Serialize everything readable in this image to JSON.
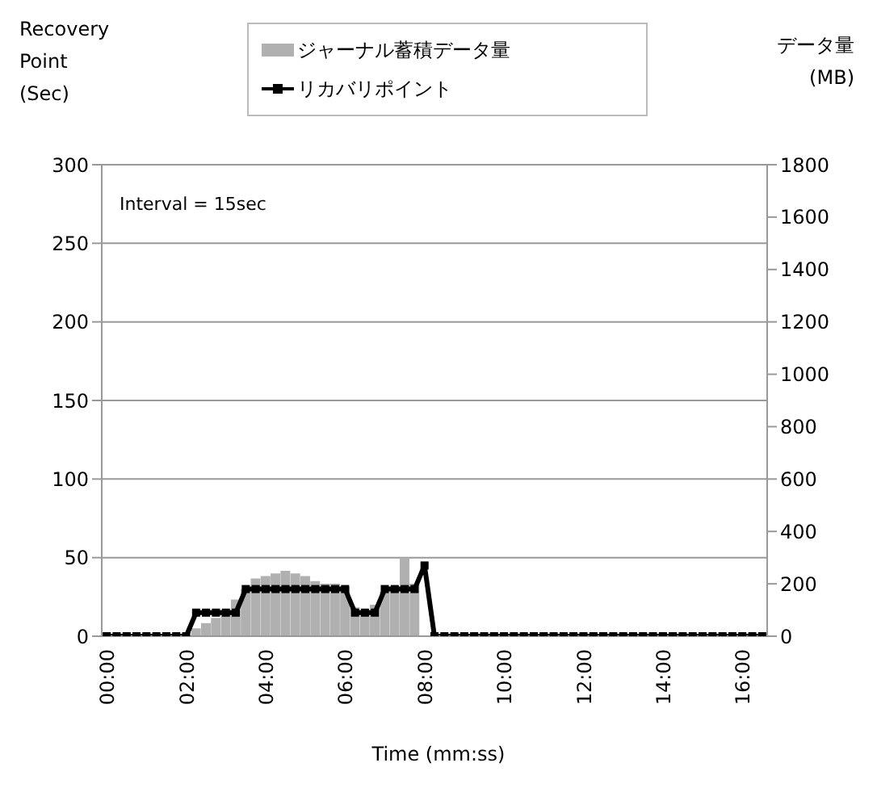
{
  "chart_data": {
    "type": "line",
    "ylabel": "Recovery Point (Sec)",
    "y2label": "データ量 (MB)",
    "xlabel": "Time (mm:ss)",
    "annotations": [
      "Interval = 15sec"
    ],
    "categories": [
      "00:00",
      null,
      null,
      null,
      null,
      null,
      null,
      null,
      "02:00",
      null,
      null,
      null,
      null,
      null,
      null,
      null,
      "04:00",
      null,
      null,
      null,
      null,
      null,
      null,
      null,
      "06:00",
      null,
      null,
      null,
      null,
      null,
      null,
      null,
      "08:00",
      null,
      null,
      null,
      null,
      null,
      null,
      null,
      "10:00",
      null,
      null,
      null,
      null,
      null,
      null,
      null,
      "12:00",
      null,
      null,
      null,
      null,
      null,
      null,
      null,
      "14:00",
      null,
      null,
      null,
      null,
      null,
      null,
      null,
      "16:00",
      null,
      null
    ],
    "series": [
      {
        "name": "ジャーナル蓄積データ量",
        "type": "bar",
        "axis": "y2",
        "color": "#b0b0b0",
        "values": [
          null,
          null,
          null,
          null,
          null,
          null,
          null,
          null,
          null,
          30,
          50,
          70,
          100,
          140,
          180,
          220,
          230,
          240,
          250,
          240,
          230,
          210,
          200,
          200,
          190,
          110,
          100,
          120,
          170,
          190,
          300,
          200,
          null,
          null,
          null,
          null,
          null,
          null,
          null,
          null,
          null,
          null,
          null,
          null,
          null,
          null,
          null,
          null,
          null,
          null,
          null,
          null,
          null,
          null,
          null,
          null,
          null,
          null,
          null,
          null,
          null,
          null,
          null,
          null,
          null,
          null,
          null
        ]
      },
      {
        "name": "リカバリポイント",
        "color": "#000000",
        "values": [
          0,
          0,
          0,
          0,
          0,
          0,
          0,
          0,
          0,
          15,
          15,
          15,
          15,
          15,
          30,
          30,
          30,
          30,
          30,
          30,
          30,
          30,
          30,
          30,
          30,
          15,
          15,
          15,
          30,
          30,
          30,
          30,
          45,
          0,
          0,
          0,
          0,
          0,
          0,
          0,
          0,
          0,
          0,
          0,
          0,
          0,
          0,
          0,
          0,
          0,
          0,
          0,
          0,
          0,
          0,
          0,
          0,
          0,
          0,
          0,
          0,
          0,
          0,
          0,
          0,
          0,
          0
        ]
      }
    ],
    "ylim": [
      0,
      300
    ],
    "yticks": [
      0,
      50,
      100,
      150,
      200,
      250,
      300
    ],
    "y2lim": [
      0,
      1800
    ],
    "y2ticks": [
      0,
      200,
      400,
      600,
      800,
      1000,
      1200,
      1400,
      1600,
      1800
    ],
    "grid": "y",
    "legend": "top",
    "marker": "square",
    "line_style": "solid"
  }
}
